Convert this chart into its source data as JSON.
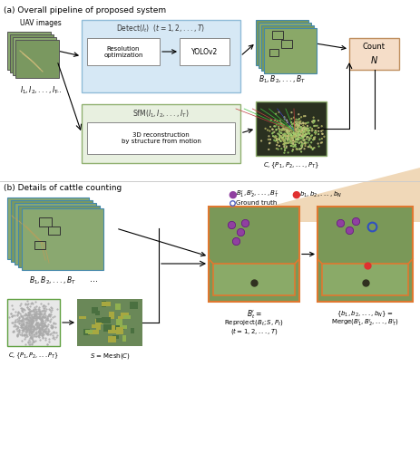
{
  "title_a": "(a) Overall pipeline of proposed system",
  "title_b": "(b) Details of cattle counting",
  "bg_color": "#ffffff",
  "fig_bg_color": "#f5e8d8",
  "panel_a": {
    "uav_label": "UAV images",
    "uav_sublabel": "$I_1, I_2, ..., I_T$",
    "detect_box_title": "Detect($I_t$)  ($t = 1, 2, ..., T$)",
    "detect_box_color": "#d6e8f5",
    "detect_box_border": "#a0c4e0",
    "resopt_label": "Resolution\noptimization",
    "yolo_label": "YOLOv2",
    "sfm_box_title": "SfM($I_1, I_2, ..., I_T$)",
    "sfm_box_color": "#e8f0e0",
    "sfm_box_border": "#90b070",
    "sfm_inner_label": "3D reconstruction\nby structure from motion",
    "b_label": "$B_1, B_2, ..., B_T$",
    "cp_label": "$C, \\{P_1, P_2, ..., P_T\\}$",
    "count_label": "Count",
    "count_n_label": "$N$",
    "count_box_color": "#f5ddc8",
    "count_box_border": "#c09060"
  },
  "panel_b": {
    "b_label": "$B_1, B_2, ..., B_T$",
    "cp_label": "$C, \\{P_1, P_2, ...P_T\\}$",
    "s_label": "$S$ = Mesh($C$)",
    "bt_prime_label": "$B_t^\\prime =$\nReproject$(B_t; S, P_t)$\n$(t = 1, 2, ..., T)$",
    "merge_label": "$\\{b_1, b_2, ..., b_N\\} =$\nMerge$(B_1^\\prime, B_2^\\prime, ..., B_T^\\prime)$",
    "legend_purple": "$B_1^\\prime, B_2^\\prime, ..., B_T^\\prime$",
    "legend_red": "$b_1, b_2, ..., b_N$",
    "legend_circle": "Ground truth",
    "orange_border": "#e07830",
    "blue_border": "#4080c0",
    "green_border": "#60a040"
  }
}
